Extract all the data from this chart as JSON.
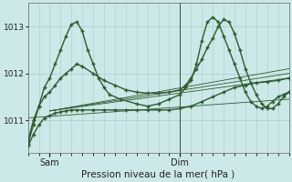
{
  "bg_color": "#cce8e8",
  "plot_bg_color": "#cce8e8",
  "grid_color": "#aacccc",
  "line_color": "#2d5a2d",
  "xlabel": "Pression niveau de la mer( hPa )",
  "yticks": [
    1011,
    1012,
    1013
  ],
  "xtick_labels": [
    "Sam",
    "Dim"
  ],
  "ylim": [
    1010.3,
    1013.5
  ],
  "xlim": [
    0,
    48
  ],
  "sam_x": 4,
  "dim_x": 28,
  "curve1_x": [
    0,
    1,
    2,
    3,
    4,
    5,
    6,
    7,
    8,
    9,
    10,
    11,
    12,
    13,
    14,
    15,
    17,
    20,
    22,
    24,
    26,
    28,
    29,
    30,
    31,
    32,
    33,
    34,
    35,
    36,
    37,
    38,
    39,
    40,
    41,
    42,
    43,
    44,
    45,
    46,
    47,
    48
  ],
  "curve1_y": [
    1010.5,
    1010.9,
    1011.3,
    1011.7,
    1011.9,
    1012.2,
    1012.5,
    1012.8,
    1013.05,
    1013.1,
    1012.9,
    1012.5,
    1012.2,
    1011.9,
    1011.7,
    1011.55,
    1011.45,
    1011.35,
    1011.3,
    1011.35,
    1011.45,
    1011.55,
    1011.7,
    1011.85,
    1012.2,
    1012.7,
    1013.1,
    1013.2,
    1013.1,
    1012.8,
    1012.5,
    1012.2,
    1011.9,
    1011.6,
    1011.4,
    1011.3,
    1011.25,
    1011.3,
    1011.4,
    1011.5,
    1011.55,
    1011.6
  ],
  "curve2_x": [
    0,
    1,
    2,
    3,
    4,
    5,
    6,
    7,
    8,
    9,
    10,
    12,
    14,
    16,
    18,
    20,
    22,
    24,
    26,
    28,
    29,
    30,
    31,
    32,
    33,
    34,
    35,
    36,
    37,
    38,
    39,
    40,
    41,
    42,
    43,
    44,
    45,
    46,
    47,
    48
  ],
  "curve2_y": [
    1010.55,
    1011.0,
    1011.3,
    1011.5,
    1011.6,
    1011.75,
    1011.9,
    1012.0,
    1012.1,
    1012.2,
    1012.15,
    1012.0,
    1011.85,
    1011.75,
    1011.65,
    1011.6,
    1011.58,
    1011.58,
    1011.6,
    1011.65,
    1011.75,
    1011.9,
    1012.1,
    1012.3,
    1012.55,
    1012.75,
    1013.0,
    1013.15,
    1013.1,
    1012.85,
    1012.5,
    1012.1,
    1011.8,
    1011.55,
    1011.35,
    1011.25,
    1011.25,
    1011.35,
    1011.5,
    1011.6
  ],
  "curve3_x": [
    0,
    1,
    2,
    3,
    4,
    5,
    6,
    7,
    8,
    9,
    10,
    12,
    14,
    16,
    18,
    20,
    22,
    24,
    26,
    28,
    30,
    32,
    34,
    36,
    38,
    40,
    42,
    44,
    46,
    48
  ],
  "curve3_y": [
    1010.45,
    1010.7,
    1010.9,
    1011.05,
    1011.1,
    1011.15,
    1011.18,
    1011.2,
    1011.22,
    1011.22,
    1011.22,
    1011.22,
    1011.22,
    1011.22,
    1011.22,
    1011.22,
    1011.22,
    1011.22,
    1011.22,
    1011.25,
    1011.3,
    1011.4,
    1011.5,
    1011.6,
    1011.7,
    1011.75,
    1011.8,
    1011.82,
    1011.85,
    1011.9
  ],
  "trend1_x": [
    0,
    48
  ],
  "trend1_y": [
    1011.05,
    1011.45
  ],
  "trend2_x": [
    4,
    48
  ],
  "trend2_y": [
    1011.2,
    1011.9
  ],
  "trend3_x": [
    4,
    48
  ],
  "trend3_y": [
    1011.2,
    1012.0
  ],
  "trend4_x": [
    4,
    48
  ],
  "trend4_y": [
    1011.2,
    1012.1
  ],
  "vline_x": 28
}
